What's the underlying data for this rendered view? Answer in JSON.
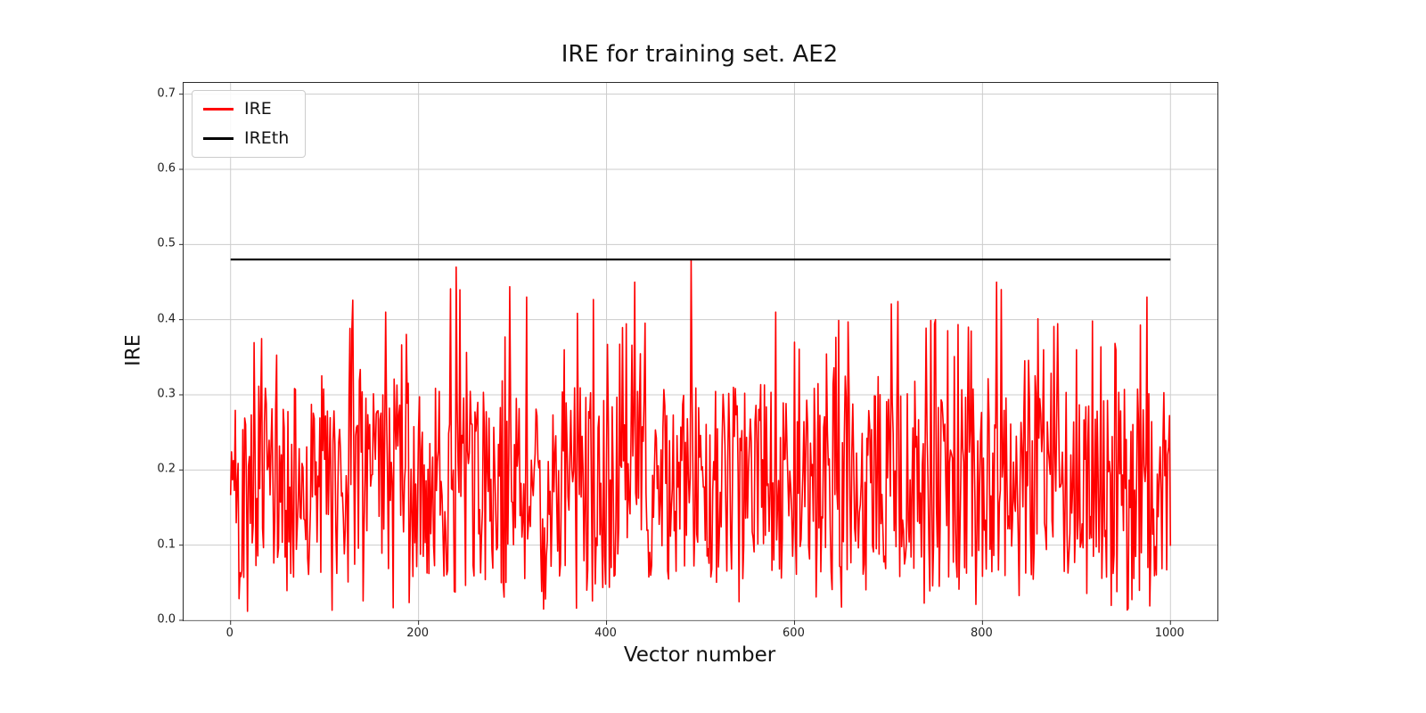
{
  "chart_data": {
    "type": "line",
    "title": "IRE for training set. AE2",
    "xlabel": "Vector number",
    "ylabel": "IRE",
    "xlim": [
      -50,
      1050
    ],
    "ylim": [
      0,
      0.715
    ],
    "xticks": [
      0,
      200,
      400,
      600,
      800,
      1000
    ],
    "yticks": [
      "0.0",
      "0.1",
      "0.2",
      "0.3",
      "0.4",
      "0.5",
      "0.6",
      "0.7"
    ],
    "grid": true,
    "grid_color": "#cccccc",
    "frame_color": "#2b2b2b",
    "background": "#ffffff",
    "legend": {
      "position": "upper left",
      "entries": [
        {
          "label": "IRE",
          "color": "#ff0000"
        },
        {
          "label": "IREth",
          "color": "#000000"
        }
      ]
    },
    "series": [
      {
        "name": "IRE",
        "color": "#ff0000",
        "line_width": 1.6,
        "kind": "noise",
        "x_start": 0,
        "x_end": 1000,
        "noise": {
          "n_points": 1001,
          "seed": 42,
          "base_min": 0.05,
          "base_max": 0.31,
          "dip_probability": 0.045,
          "dip_min": 0.01,
          "dip_max": 0.05,
          "mid_spike_probability": 0.06,
          "mid_spike_min": 0.31,
          "mid_spike_max": 0.4,
          "high_spike_probability": 0.012,
          "high_spike_min": 0.4,
          "high_spike_max": 0.47,
          "value_floor": 0.005,
          "value_cap": 0.48,
          "mean_approx": 0.18
        },
        "forced_peaks": [
          {
            "x": 165,
            "v": 0.41
          },
          {
            "x": 240,
            "v": 0.47
          },
          {
            "x": 315,
            "v": 0.43
          },
          {
            "x": 355,
            "v": 0.36
          },
          {
            "x": 430,
            "v": 0.45
          },
          {
            "x": 490,
            "v": 0.48
          },
          {
            "x": 580,
            "v": 0.41
          },
          {
            "x": 600,
            "v": 0.37
          },
          {
            "x": 750,
            "v": 0.4
          },
          {
            "x": 785,
            "v": 0.39
          },
          {
            "x": 815,
            "v": 0.45
          },
          {
            "x": 820,
            "v": 0.44
          },
          {
            "x": 900,
            "v": 0.36
          },
          {
            "x": 975,
            "v": 0.43
          }
        ]
      },
      {
        "name": "IREth",
        "color": "#000000",
        "line_width": 2.2,
        "kind": "constant",
        "value": 0.48,
        "x_start": 0,
        "x_end": 1000
      }
    ]
  }
}
